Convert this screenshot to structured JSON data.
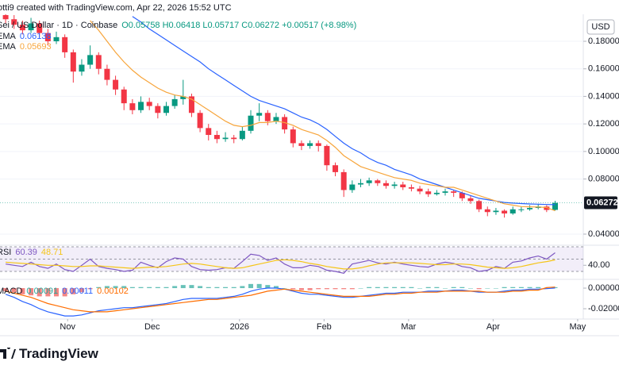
{
  "watermark": "otti9 created with TradingView.com, Apr 22, 2026 15:52 UTC",
  "currency": "USD",
  "footer": {
    "brand": "TradingView"
  },
  "chart_data": [
    {
      "type": "candlestick",
      "title": "Sei / US Dollar · 1D · Coinbase",
      "ohlc_text": "O0.05758 H0.06418 L0.05717 C0.06272 +0.00517 (+8.98%)",
      "up_color": "#089981",
      "down_color": "#f23645",
      "grid": true,
      "xlim": [
        0,
        207
      ],
      "ylim": [
        0.0325,
        0.1996
      ],
      "yticks": [
        {
          "value": 0.18,
          "label": "0.18000"
        },
        {
          "value": 0.16,
          "label": "0.16000"
        },
        {
          "value": 0.14,
          "label": "0.14000"
        },
        {
          "value": 0.12,
          "label": "0.12000"
        },
        {
          "value": 0.1,
          "label": "0.10000"
        },
        {
          "value": 0.08,
          "label": "0.08000"
        },
        {
          "value": 0.04,
          "label": "0.04000"
        }
      ],
      "x": [
        2,
        5,
        8,
        11,
        14,
        17,
        20,
        23,
        26,
        29,
        32,
        35,
        38,
        41,
        44,
        47,
        50,
        53,
        56,
        59,
        62,
        65,
        68,
        71,
        74,
        77,
        80,
        83,
        86,
        89,
        92,
        95,
        98,
        101,
        104,
        107,
        110,
        113,
        116,
        119,
        122,
        125,
        128,
        131,
        134,
        137,
        140,
        143,
        146,
        149,
        152,
        155,
        158,
        161,
        164,
        167,
        170,
        173,
        176,
        179,
        182,
        185,
        188,
        191,
        194,
        197
      ],
      "open": [
        0.199,
        0.196,
        0.192,
        0.188,
        0.193,
        0.186,
        0.18,
        0.183,
        0.172,
        0.158,
        0.163,
        0.17,
        0.16,
        0.152,
        0.145,
        0.135,
        0.13,
        0.136,
        0.133,
        0.128,
        0.133,
        0.138,
        0.14,
        0.128,
        0.117,
        0.112,
        0.109,
        0.11,
        0.109,
        0.115,
        0.126,
        0.128,
        0.122,
        0.125,
        0.116,
        0.106,
        0.104,
        0.106,
        0.104,
        0.09,
        0.085,
        0.072,
        0.076,
        0.077,
        0.079,
        0.077,
        0.075,
        0.076,
        0.074,
        0.073,
        0.071,
        0.069,
        0.07,
        0.071,
        0.07,
        0.066,
        0.064,
        0.058,
        0.056,
        0.057,
        0.055,
        0.058,
        0.058,
        0.059,
        0.06,
        0.05758
      ],
      "high": [
        0.201,
        0.199,
        0.195,
        0.197,
        0.195,
        0.189,
        0.187,
        0.185,
        0.174,
        0.167,
        0.177,
        0.172,
        0.163,
        0.155,
        0.147,
        0.138,
        0.14,
        0.139,
        0.135,
        0.136,
        0.141,
        0.152,
        0.142,
        0.13,
        0.12,
        0.115,
        0.114,
        0.112,
        0.118,
        0.13,
        0.135,
        0.13,
        0.128,
        0.127,
        0.118,
        0.108,
        0.108,
        0.108,
        0.105,
        0.092,
        0.087,
        0.079,
        0.08,
        0.081,
        0.08,
        0.079,
        0.078,
        0.078,
        0.076,
        0.075,
        0.073,
        0.072,
        0.073,
        0.072,
        0.071,
        0.068,
        0.065,
        0.06,
        0.059,
        0.058,
        0.06,
        0.06,
        0.061,
        0.062,
        0.061,
        0.06418
      ],
      "low": [
        0.193,
        0.189,
        0.185,
        0.186,
        0.183,
        0.177,
        0.178,
        0.168,
        0.15,
        0.155,
        0.16,
        0.156,
        0.148,
        0.141,
        0.13,
        0.127,
        0.128,
        0.13,
        0.124,
        0.126,
        0.131,
        0.134,
        0.125,
        0.114,
        0.108,
        0.106,
        0.107,
        0.106,
        0.108,
        0.113,
        0.122,
        0.119,
        0.12,
        0.113,
        0.103,
        0.101,
        0.102,
        0.1,
        0.086,
        0.082,
        0.067,
        0.07,
        0.074,
        0.075,
        0.075,
        0.073,
        0.073,
        0.072,
        0.071,
        0.069,
        0.067,
        0.068,
        0.068,
        0.067,
        0.064,
        0.062,
        0.056,
        0.053,
        0.054,
        0.052,
        0.054,
        0.056,
        0.057,
        0.058,
        0.056,
        0.05717
      ],
      "close": [
        0.196,
        0.192,
        0.188,
        0.193,
        0.186,
        0.18,
        0.183,
        0.172,
        0.158,
        0.163,
        0.17,
        0.16,
        0.152,
        0.145,
        0.135,
        0.13,
        0.136,
        0.133,
        0.128,
        0.133,
        0.138,
        0.14,
        0.128,
        0.117,
        0.112,
        0.109,
        0.11,
        0.109,
        0.115,
        0.126,
        0.128,
        0.122,
        0.125,
        0.116,
        0.106,
        0.104,
        0.106,
        0.104,
        0.09,
        0.085,
        0.072,
        0.076,
        0.077,
        0.079,
        0.077,
        0.075,
        0.076,
        0.074,
        0.073,
        0.071,
        0.069,
        0.07,
        0.071,
        0.07,
        0.066,
        0.064,
        0.058,
        0.056,
        0.057,
        0.055,
        0.058,
        0.058,
        0.059,
        0.06,
        0.05755,
        0.06272
      ],
      "series": [
        {
          "name": "EMA",
          "color": "#2962ff",
          "values": [
            null,
            null,
            null,
            null,
            null,
            null,
            null,
            null,
            null,
            null,
            null,
            null,
            null,
            null,
            null,
            0.198,
            0.194,
            0.189,
            0.185,
            0.181,
            0.177,
            0.173,
            0.169,
            0.165,
            0.16,
            0.156,
            0.152,
            0.148,
            0.144,
            0.14,
            0.137,
            0.135,
            0.133,
            0.131,
            0.128,
            0.125,
            0.123,
            0.12,
            0.116,
            0.111,
            0.106,
            0.102,
            0.099,
            0.095,
            0.092,
            0.09,
            0.087,
            0.085,
            0.083,
            0.08,
            0.078,
            0.076,
            0.074,
            0.072,
            0.07,
            0.068,
            0.066,
            0.065,
            0.064,
            0.063,
            0.0625,
            0.0622,
            0.0619,
            0.0617,
            0.0615,
            0.06138
          ]
        },
        {
          "name": "EMA",
          "color": "#f7a53b",
          "values": [
            null,
            null,
            null,
            null,
            null,
            null,
            null,
            null,
            null,
            null,
            0.195,
            0.188,
            0.18,
            0.172,
            0.165,
            0.159,
            0.154,
            0.15,
            0.146,
            0.143,
            0.141,
            0.14,
            0.138,
            0.134,
            0.13,
            0.126,
            0.122,
            0.119,
            0.118,
            0.119,
            0.121,
            0.121,
            0.122,
            0.121,
            0.119,
            0.116,
            0.114,
            0.112,
            0.108,
            0.103,
            0.097,
            0.093,
            0.089,
            0.087,
            0.085,
            0.083,
            0.081,
            0.08,
            0.079,
            0.077,
            0.076,
            0.075,
            0.074,
            0.074,
            0.072,
            0.07,
            0.068,
            0.066,
            0.064,
            0.062,
            0.061,
            0.06,
            0.0598,
            0.0597,
            0.0593,
            0.05693
          ]
        }
      ]
    },
    {
      "type": "line",
      "title": "RSI",
      "xlim": [
        0,
        207
      ],
      "ylim": [
        17.1,
        72.6
      ],
      "band": [
        30,
        50,
        70
      ],
      "band_color": "#7e57c2",
      "yticks": [
        {
          "value": 40,
          "label": "40.00"
        }
      ],
      "x": [
        2,
        5,
        8,
        11,
        14,
        17,
        20,
        23,
        26,
        29,
        32,
        35,
        38,
        41,
        44,
        47,
        50,
        53,
        56,
        59,
        62,
        65,
        68,
        71,
        74,
        77,
        80,
        83,
        86,
        89,
        92,
        95,
        98,
        101,
        104,
        107,
        110,
        113,
        116,
        119,
        122,
        125,
        128,
        131,
        134,
        137,
        140,
        143,
        146,
        149,
        152,
        155,
        158,
        161,
        164,
        167,
        170,
        173,
        176,
        179,
        182,
        185,
        188,
        191,
        194,
        197
      ],
      "series": [
        {
          "color": "#7e57c2",
          "values": [
            42,
            40,
            38,
            45,
            38,
            35,
            42,
            33,
            30,
            40,
            50,
            38,
            35,
            33,
            30,
            32,
            45,
            40,
            36,
            46,
            52,
            50,
            38,
            33,
            32,
            33,
            36,
            35,
            46,
            58,
            56,
            48,
            52,
            42,
            36,
            36,
            40,
            38,
            32,
            30,
            27,
            42,
            45,
            48,
            44,
            42,
            45,
            42,
            40,
            38,
            37,
            42,
            45,
            43,
            38,
            36,
            30,
            32,
            38,
            35,
            45,
            47,
            52,
            55,
            50,
            60.39
          ]
        },
        {
          "color": "#f5c518",
          "values": [
            45,
            44,
            43,
            42,
            41,
            40,
            40,
            39,
            38,
            38,
            39,
            39,
            38,
            37,
            36,
            35,
            36,
            37,
            37,
            38,
            40,
            42,
            43,
            42,
            40,
            38,
            36,
            35,
            36,
            39,
            42,
            45,
            48,
            49,
            48,
            46,
            43,
            41,
            38,
            36,
            34,
            34,
            36,
            39,
            42,
            44,
            44,
            44,
            44,
            43,
            42,
            41,
            41,
            42,
            42,
            41,
            39,
            37,
            36,
            35,
            36,
            38,
            41,
            44,
            46,
            48.71
          ]
        }
      ]
    },
    {
      "type": "line",
      "title": "MACD",
      "xlim": [
        0,
        207
      ],
      "ylim": [
        -0.03,
        0.0085
      ],
      "yticks": [
        {
          "value": 0,
          "label": "0.00000"
        },
        {
          "value": -0.02,
          "label": "-0.02000"
        }
      ],
      "xticks": [
        {
          "value": 24,
          "label": "Nov"
        },
        {
          "value": 54,
          "label": "Dec"
        },
        {
          "value": 85,
          "label": "2026"
        },
        {
          "value": 115,
          "label": "Feb"
        },
        {
          "value": 145,
          "label": "Mar"
        },
        {
          "value": 175,
          "label": "Apr"
        },
        {
          "value": 205,
          "label": "May"
        }
      ],
      "x": [
        2,
        5,
        8,
        11,
        14,
        17,
        20,
        23,
        26,
        29,
        32,
        35,
        38,
        41,
        44,
        47,
        50,
        53,
        56,
        59,
        62,
        65,
        68,
        71,
        74,
        77,
        80,
        83,
        86,
        89,
        92,
        95,
        98,
        101,
        104,
        107,
        110,
        113,
        116,
        119,
        122,
        125,
        128,
        131,
        134,
        137,
        140,
        143,
        146,
        149,
        152,
        155,
        158,
        161,
        164,
        167,
        170,
        173,
        176,
        179,
        182,
        185,
        188,
        191,
        194,
        197
      ],
      "series": [
        {
          "style": "bar",
          "color": "#26a69a",
          "negative_color": "#ef5350",
          "values": [
            -0.003,
            -0.004,
            -0.006,
            -0.007,
            -0.008,
            -0.008,
            -0.008,
            -0.008,
            -0.006,
            -0.004,
            -0.001,
            0.001,
            0.002,
            0.002,
            0.002,
            0.001,
            0.001,
            0.001,
            0.001,
            0.001,
            0.002,
            0.003,
            0.003,
            0.002,
            0.001,
            0.001,
            0.001,
            0.001,
            0.002,
            0.004,
            0.004,
            0.003,
            0.002,
            0,
            -0.001,
            -0.002,
            -0.002,
            -0.001,
            -0.001,
            -0.001,
            -0.001,
            -0.001,
            0,
            0.001,
            0.001,
            0.001,
            0.001,
            0.001,
            0.001,
            0,
            0.001,
            0.001,
            0,
            0.001,
            0.001,
            0,
            -0.001,
            0,
            0,
            0.001,
            0.001,
            0.001,
            0.001,
            0.001,
            0,
            0.00091
          ]
        },
        {
          "color": "#2962ff",
          "values": [
            -0.006,
            -0.009,
            -0.013,
            -0.016,
            -0.02,
            -0.023,
            -0.025,
            -0.027,
            -0.027,
            -0.026,
            -0.024,
            -0.022,
            -0.021,
            -0.02,
            -0.019,
            -0.019,
            -0.018,
            -0.017,
            -0.016,
            -0.015,
            -0.013,
            -0.011,
            -0.01,
            -0.01,
            -0.01,
            -0.01,
            -0.009,
            -0.008,
            -0.006,
            -0.003,
            -0.001,
            0,
            0,
            -0.001,
            -0.003,
            -0.005,
            -0.006,
            -0.006,
            -0.007,
            -0.008,
            -0.009,
            -0.009,
            -0.008,
            -0.007,
            -0.006,
            -0.005,
            -0.005,
            -0.004,
            -0.004,
            -0.004,
            -0.003,
            -0.003,
            -0.003,
            -0.002,
            -0.002,
            -0.003,
            -0.004,
            -0.004,
            -0.004,
            -0.003,
            -0.002,
            -0.002,
            -0.001,
            -0.001,
            -0.0005,
            0.00011
          ]
        },
        {
          "color": "#ff6d00",
          "values": [
            -0.003,
            -0.005,
            -0.007,
            -0.009,
            -0.012,
            -0.015,
            -0.017,
            -0.019,
            -0.021,
            -0.022,
            -0.023,
            -0.023,
            -0.023,
            -0.022,
            -0.021,
            -0.02,
            -0.019,
            -0.018,
            -0.017,
            -0.016,
            -0.015,
            -0.014,
            -0.013,
            -0.012,
            -0.011,
            -0.011,
            -0.01,
            -0.009,
            -0.008,
            -0.007,
            -0.005,
            -0.003,
            -0.002,
            -0.001,
            -0.002,
            -0.003,
            -0.004,
            -0.005,
            -0.006,
            -0.007,
            -0.008,
            -0.008,
            -0.008,
            -0.008,
            -0.007,
            -0.006,
            -0.006,
            -0.005,
            -0.005,
            -0.004,
            -0.004,
            -0.004,
            -0.003,
            -0.003,
            -0.003,
            -0.003,
            -0.003,
            -0.004,
            -0.004,
            -0.004,
            -0.003,
            -0.003,
            -0.002,
            -0.002,
            0.0005,
            0.00102
          ]
        }
      ]
    }
  ]
}
